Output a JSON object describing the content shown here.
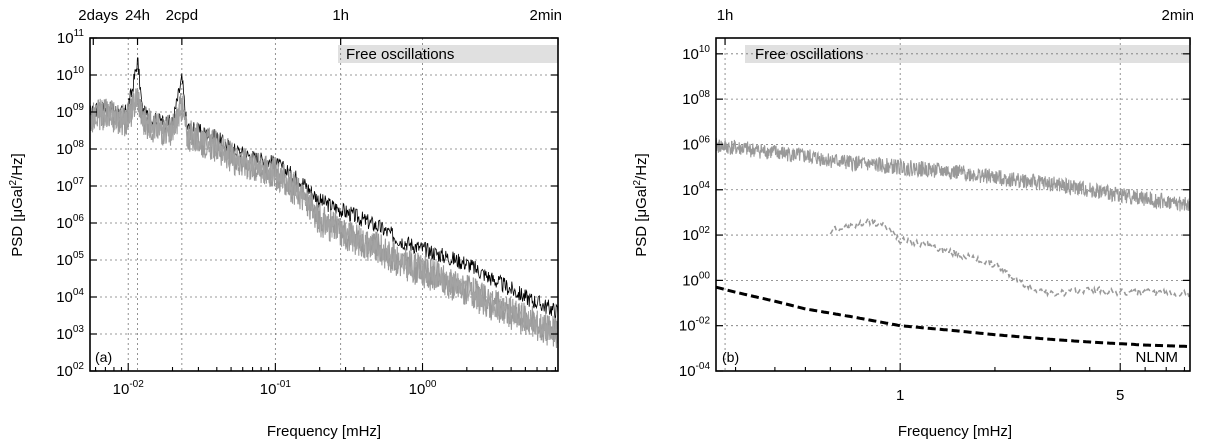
{
  "figure": {
    "panels": [
      {
        "id": "a",
        "panel_label": "(a)",
        "xlabel": "Frequency [mHz]",
        "ylabel_main": "PSD [μGal",
        "ylabel_sup": "2",
        "ylabel_tail": "/Hz]",
        "band_label": "Free oscillations",
        "x_ticks": [
          {
            "base": "10",
            "exp": "-02"
          },
          {
            "base": "10",
            "exp": "-01"
          },
          {
            "base": "10",
            "exp": "00"
          }
        ],
        "y_ticks": [
          {
            "base": "10",
            "exp": "02"
          },
          {
            "base": "10",
            "exp": "03"
          },
          {
            "base": "10",
            "exp": "04"
          },
          {
            "base": "10",
            "exp": "05"
          },
          {
            "base": "10",
            "exp": "06"
          },
          {
            "base": "10",
            "exp": "07"
          },
          {
            "base": "10",
            "exp": "08"
          },
          {
            "base": "10",
            "exp": "09"
          },
          {
            "base": "10",
            "exp": "10"
          },
          {
            "base": "10",
            "exp": "11"
          }
        ],
        "top_ticks": [
          "2days",
          "24h",
          "2cpd",
          "1h",
          "2min"
        ]
      },
      {
        "id": "b",
        "panel_label": "(b)",
        "xlabel": "Frequency [mHz]",
        "ylabel_main": "PSD [μGal",
        "ylabel_sup": "2",
        "ylabel_tail": "/Hz]",
        "band_label": "Free oscillations",
        "curve_label": "NLNM",
        "x_ticks": [
          "1",
          "5"
        ],
        "y_ticks": [
          {
            "base": "10",
            "exp": "-04"
          },
          {
            "base": "10",
            "exp": "-02"
          },
          {
            "base": "10",
            "exp": "00"
          },
          {
            "base": "10",
            "exp": "02"
          },
          {
            "base": "10",
            "exp": "04"
          },
          {
            "base": "10",
            "exp": "06"
          },
          {
            "base": "10",
            "exp": "08"
          },
          {
            "base": "10",
            "exp": "10"
          }
        ],
        "top_ticks": [
          "1h",
          "2min"
        ]
      }
    ]
  },
  "chart_data": [
    {
      "type": "line",
      "panel": "a",
      "x_scale": "log",
      "y_scale": "log",
      "xlabel": "Frequency [mHz]",
      "ylabel": "PSD [μGal^2/Hz]",
      "xlim": [
        0.0055,
        8.33
      ],
      "ylim": [
        100,
        100000000000
      ],
      "grid": true,
      "top_axis": {
        "labels": [
          "2days",
          "24h",
          "2cpd",
          "1h",
          "2min"
        ],
        "x": [
          0.00579,
          0.01157,
          0.02315,
          0.2778,
          8.333
        ]
      },
      "band": {
        "label": "Free oscillations",
        "x_from": 0.2778,
        "x_to": 8.333,
        "y_from": 30000000000,
        "y_to": 60000000000
      },
      "series": [
        {
          "color": "#000000",
          "x": [
            0.0055,
            0.0065,
            0.008,
            0.0095,
            0.0105,
            0.0116,
            0.0125,
            0.015,
            0.02,
            0.0232,
            0.025,
            0.03,
            0.04,
            0.05,
            0.07,
            0.1,
            0.15,
            0.2,
            0.3,
            0.5,
            0.7,
            1.0,
            2.0,
            3.0,
            5.0,
            8.33
          ],
          "y": [
            900000000,
            1300000000,
            1100000000,
            900000000,
            3000000000,
            25000000000,
            1000000000,
            600000000,
            500000000,
            8000000000,
            400000000,
            300000000,
            200000000,
            100000000,
            60000000,
            40000000,
            14000000,
            4000000,
            2000000,
            800000,
            350000,
            200000,
            80000,
            30000,
            10000,
            4000
          ]
        },
        {
          "color": "#999999",
          "x": [
            0.0055,
            0.0065,
            0.008,
            0.0095,
            0.0105,
            0.0116,
            0.0125,
            0.015,
            0.02,
            0.0232,
            0.025,
            0.03,
            0.04,
            0.05,
            0.07,
            0.1,
            0.15,
            0.2,
            0.3,
            0.5,
            0.7,
            1.0,
            2.0,
            3.0,
            5.0,
            8.33
          ],
          "y": [
            600000000,
            900000000,
            700000000,
            600000000,
            1000000000,
            3000000000,
            600000000,
            400000000,
            300000000,
            1500000000,
            250000000,
            180000000,
            120000000,
            60000000,
            35000000,
            22000000,
            6000000,
            1200000,
            500000,
            200000,
            90000,
            50000,
            15000,
            6000,
            2500,
            1000
          ]
        }
      ]
    },
    {
      "type": "line",
      "panel": "b",
      "x_scale": "log",
      "y_scale": "log",
      "xlabel": "Frequency [mHz]",
      "ylabel": "PSD [μGal^2/Hz]",
      "xlim": [
        0.26,
        8.33
      ],
      "ylim": [
        0.0001,
        50000000000
      ],
      "grid": true,
      "top_axis": {
        "labels": [
          "1h",
          "2min"
        ],
        "x": [
          0.2778,
          8.333
        ]
      },
      "band": {
        "label": "Free oscillations",
        "x_from": 0.3,
        "x_to": 8.333,
        "y_from": 3000000000,
        "y_to": 30000000000
      },
      "series": [
        {
          "color": "#999999",
          "style": "solid",
          "x": [
            0.26,
            0.3,
            0.4,
            0.5,
            0.7,
            1.0,
            1.5,
            2.0,
            3.0,
            5.0,
            8.33
          ],
          "y": [
            900000,
            700000,
            450000,
            300000,
            150000,
            100000,
            60000,
            35000,
            18000,
            6000,
            2000
          ]
        },
        {
          "color": "#999999",
          "style": "dashed",
          "x": [
            0.6,
            0.7,
            0.8,
            0.9,
            1.0,
            1.2,
            1.5,
            2.0,
            2.5,
            3.0,
            4.0,
            5.0,
            6.0,
            8.33
          ],
          "y": [
            150,
            250,
            400,
            250,
            60,
            40,
            15,
            5,
            0.6,
            0.25,
            0.4,
            0.3,
            0.3,
            0.25
          ]
        },
        {
          "name": "NLNM",
          "color": "#000000",
          "style": "dashed-bold",
          "x": [
            0.26,
            0.3,
            0.4,
            0.5,
            0.7,
            1.0,
            1.5,
            2.0,
            3.0,
            4.0,
            5.0,
            6.0,
            8.33
          ],
          "y": [
            0.5,
            0.3,
            0.12,
            0.055,
            0.025,
            0.01,
            0.006,
            0.004,
            0.0025,
            0.0019,
            0.0016,
            0.0014,
            0.0012
          ]
        }
      ]
    }
  ]
}
